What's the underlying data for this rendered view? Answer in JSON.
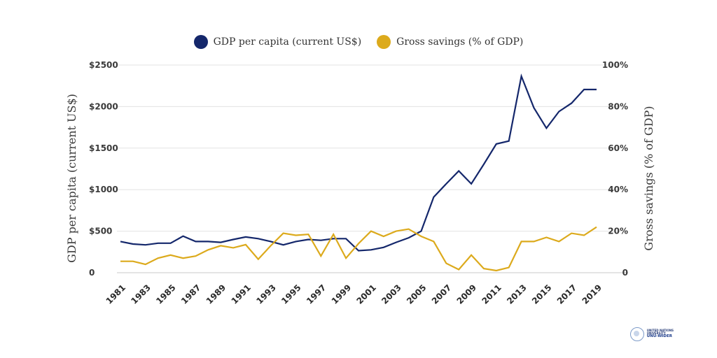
{
  "chart_data": {
    "type": "line",
    "legend_position": "top-center",
    "x": [
      1981,
      1982,
      1983,
      1984,
      1985,
      1986,
      1987,
      1988,
      1989,
      1990,
      1991,
      1992,
      1993,
      1994,
      1995,
      1996,
      1997,
      1998,
      1999,
      2000,
      2001,
      2002,
      2003,
      2004,
      2005,
      2006,
      2007,
      2008,
      2009,
      2010,
      2011,
      2012,
      2013,
      2014,
      2015,
      2016,
      2017,
      2018,
      2019
    ],
    "x_tick_labels": [
      "1981",
      "1983",
      "1985",
      "1987",
      "1989",
      "1991",
      "1993",
      "1995",
      "1997",
      "1999",
      "2001",
      "2003",
      "2005",
      "2007",
      "2009",
      "2011",
      "2013",
      "2015",
      "2017",
      "2019"
    ],
    "series": [
      {
        "name": "GDP per capita (current US$)",
        "axis": "left",
        "color": "#14276b",
        "values": [
          375,
          345,
          335,
          355,
          355,
          440,
          375,
          375,
          365,
          400,
          430,
          410,
          375,
          335,
          375,
          400,
          390,
          410,
          410,
          265,
          275,
          305,
          365,
          420,
          500,
          910,
          1070,
          1225,
          1070,
          1305,
          1550,
          1585,
          2365,
          1985,
          1740,
          1940,
          2040,
          2205,
          2205
        ]
      },
      {
        "name": "Gross savings (% of GDP)",
        "axis": "right",
        "color": "#dcaa1c",
        "values": [
          5.5,
          5.5,
          4,
          7,
          8.5,
          7,
          8,
          11,
          13,
          12,
          13.5,
          6.5,
          13,
          19,
          18,
          18.5,
          8,
          18.5,
          7,
          14,
          20,
          17.5,
          20,
          21,
          17.5,
          15,
          4.5,
          1.5,
          8.5,
          2,
          1,
          2.5,
          15,
          15,
          17,
          15,
          19,
          18,
          22
        ]
      }
    ],
    "y_left": {
      "label": "GDP per capita (current US$)",
      "min": 0,
      "max": 2500,
      "tick_values": [
        0,
        500,
        1000,
        1500,
        2000,
        2500
      ],
      "tick_labels": [
        "0",
        "$500",
        "$1000",
        "$1500",
        "$2000",
        "$2500"
      ]
    },
    "y_right": {
      "label": "Gross savings (% of GDP)",
      "min": 0,
      "max": 100,
      "tick_values": [
        0,
        20,
        40,
        60,
        80,
        100
      ],
      "tick_labels": [
        "0",
        "20%",
        "40%",
        "60%",
        "80%",
        "100%"
      ]
    },
    "grid": true
  },
  "legend": {
    "items": [
      {
        "label": "GDP per capita (current US$)",
        "color": "#14276b"
      },
      {
        "label": "Gross savings (% of GDP)",
        "color": "#dcaa1c"
      }
    ]
  },
  "logo": {
    "lines": [
      "UNITED NATIONS",
      "UNIVERSITY"
    ],
    "brand": "UNU-WIDER"
  }
}
